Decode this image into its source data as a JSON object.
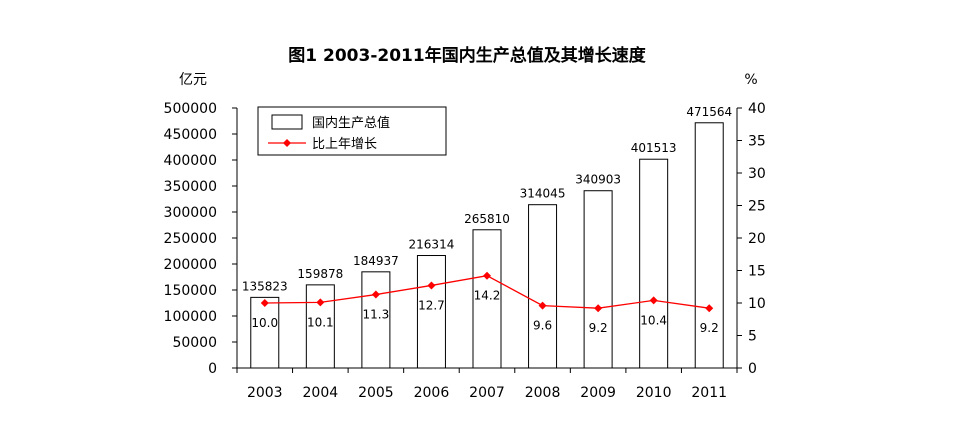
{
  "chart_data": {
    "type": "bar",
    "title": "图1   2003-2011年国内生产总值及其增长速度",
    "categories": [
      "2003",
      "2004",
      "2005",
      "2006",
      "2007",
      "2008",
      "2009",
      "2010",
      "2011"
    ],
    "series": [
      {
        "name": "国内生产总值",
        "type": "bar",
        "axis": "left",
        "values": [
          135823,
          159878,
          184937,
          216314,
          265810,
          314045,
          340903,
          401513,
          471564
        ],
        "color": "#ffffff",
        "stroke": "#000000"
      },
      {
        "name": "比上年增长",
        "type": "line",
        "axis": "right",
        "values": [
          10.0,
          10.1,
          11.3,
          12.7,
          14.2,
          9.6,
          9.2,
          10.4,
          9.2
        ],
        "labels": [
          "10.0",
          "10.1",
          "11.3",
          "12.7",
          "14.2",
          "9.6",
          "9.2",
          "10.4",
          "9.2"
        ],
        "color": "#ff0000"
      }
    ],
    "y_left": {
      "unit": "亿元",
      "ylim": [
        0,
        500000
      ],
      "ticks": [
        0,
        50000,
        100000,
        150000,
        200000,
        250000,
        300000,
        350000,
        400000,
        450000,
        500000
      ]
    },
    "y_right": {
      "unit": "%",
      "ylim": [
        0,
        40
      ],
      "ticks": [
        0,
        5,
        10,
        15,
        20,
        25,
        30,
        35,
        40
      ]
    },
    "grid": false,
    "legend_position": "top-left"
  }
}
